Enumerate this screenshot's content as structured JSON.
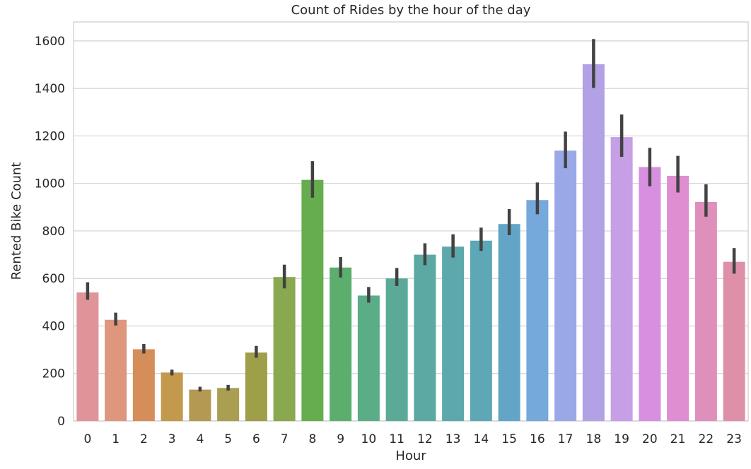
{
  "chart_data": {
    "type": "bar",
    "title": "Count of Rides by the hour of the day",
    "xlabel": "Hour",
    "ylabel": "Rented Bike Count",
    "categories": [
      "0",
      "1",
      "2",
      "3",
      "4",
      "5",
      "6",
      "7",
      "8",
      "9",
      "10",
      "11",
      "12",
      "13",
      "14",
      "15",
      "16",
      "17",
      "18",
      "19",
      "20",
      "21",
      "22",
      "23"
    ],
    "values": [
      541,
      426,
      302,
      204,
      132,
      139,
      288,
      606,
      1015,
      646,
      528,
      600,
      700,
      734,
      759,
      829,
      930,
      1138,
      1502,
      1195,
      1069,
      1032,
      922,
      670
    ],
    "error_low": [
      510,
      402,
      284,
      192,
      124,
      128,
      266,
      558,
      940,
      604,
      498,
      568,
      656,
      688,
      716,
      782,
      870,
      1064,
      1402,
      1112,
      988,
      962,
      860,
      620
    ],
    "error_high": [
      584,
      456,
      324,
      216,
      144,
      152,
      316,
      658,
      1094,
      690,
      564,
      644,
      748,
      786,
      814,
      892,
      1004,
      1218,
      1608,
      1290,
      1150,
      1116,
      996,
      728
    ],
    "colors": [
      "#e1939a",
      "#de967d",
      "#d58e5a",
      "#c3994e",
      "#b39951",
      "#a99e51",
      "#9e9f48",
      "#89a84f",
      "#65ad4f",
      "#5cae6d",
      "#5aad87",
      "#5aaa97",
      "#5ba9a2",
      "#5ca8ab",
      "#5da7b6",
      "#63a5c6",
      "#75a8db",
      "#9aa8e8",
      "#b3a1e6",
      "#c69fe6",
      "#d88fe0",
      "#de8ed1",
      "#de8fba",
      "#de90a8"
    ],
    "error_color": "#424242",
    "yticks": [
      0,
      200,
      400,
      600,
      800,
      1000,
      1200,
      1400,
      1600
    ],
    "ylim": [
      0,
      1680
    ],
    "grid": true
  }
}
